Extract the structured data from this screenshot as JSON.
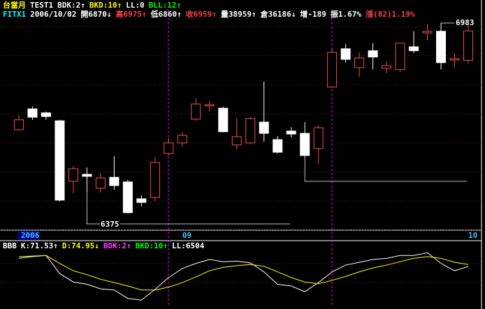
{
  "chart_data": [
    {
      "type": "candlestick",
      "header": [
        [
          {
            "text": "台當月",
            "color": "#ffff00"
          },
          {
            "text": "TEST1",
            "color": "#ffffff"
          },
          {
            "text": "BDK:2↑",
            "color": "#ffffff"
          },
          {
            "text": "BKD:10↑",
            "color": "#ffff00"
          },
          {
            "text": "LL:0",
            "color": "#ffffff"
          },
          {
            "text": "BLL:12↑",
            "color": "#00ff00"
          }
        ],
        [
          {
            "text": "FITX1",
            "color": "#00ffff"
          },
          {
            "text": "2006/10/02",
            "color": "#ffffff"
          },
          {
            "text": "開6870↓",
            "color": "#ffffff"
          },
          {
            "text": "高6975↑",
            "color": "#ff4040"
          },
          {
            "text": "低6860↑",
            "color": "#ffffff"
          },
          {
            "text": "收6959↑",
            "color": "#ff4040"
          },
          {
            "text": "量38959↑",
            "color": "#ffffff"
          },
          {
            "text": "倉36186↓",
            "color": "#ffffff"
          },
          {
            "text": "增-189",
            "color": "#ffffff"
          },
          {
            "text": "振1.67%",
            "color": "#ffffff"
          },
          {
            "text": "漲(82)1.19%",
            "color": "#ff4040"
          }
        ]
      ],
      "categories": [
        "2006",
        null,
        null,
        null,
        null,
        null,
        null,
        null,
        null,
        null,
        null,
        null,
        "09",
        null,
        null,
        null,
        null,
        null,
        null,
        null,
        null,
        null,
        null,
        null,
        null,
        null,
        null,
        null,
        null,
        null,
        null,
        null,
        null,
        "10"
      ],
      "open": [
        6660,
        6723,
        6711,
        6687,
        6504,
        6525,
        6483,
        6516,
        6502,
        6451,
        6455,
        6588,
        6620,
        6692,
        6732,
        6725,
        6614,
        6620,
        6683,
        6630,
        6656,
        6649,
        6603,
        6789,
        6905,
        6848,
        6899,
        6846,
        6842,
        6911,
        6953,
        6958,
        6871,
        6870
      ],
      "high": [
        6704,
        6730,
        6715,
        6690,
        6550,
        6546,
        6529,
        6580,
        6508,
        6462,
        6578,
        6635,
        6652,
        6755,
        6747,
        6730,
        6694,
        6698,
        6806,
        6641,
        6668,
        6683,
        6673,
        6905,
        6920,
        6894,
        6922,
        6867,
        6922,
        6958,
        6979,
        6983,
        6890,
        6975
      ],
      "low": [
        6658,
        6690,
        6690,
        6443,
        6468,
        6472,
        6470,
        6478,
        6407,
        6428,
        6445,
        6582,
        6609,
        6687,
        6715,
        6652,
        6601,
        6616,
        6624,
        6588,
        6637,
        6576,
        6557,
        6785,
        6863,
        6820,
        6842,
        6831,
        6835,
        6892,
        6930,
        6842,
        6848,
        6860
      ],
      "close": [
        6690,
        6698,
        6700,
        6447,
        6542,
        6519,
        6514,
        6491,
        6409,
        6440,
        6561,
        6620,
        6643,
        6738,
        6736,
        6654,
        6639,
        6694,
        6649,
        6592,
        6647,
        6582,
        6666,
        6894,
        6873,
        6877,
        6880,
        6854,
        6922,
        6899,
        6958,
        6863,
        6875,
        6959
      ],
      "up_color": "#f05050",
      "down_color": "#ffffff",
      "ylim": [
        6356,
        7023
      ],
      "grid": true,
      "annotations": [
        {
          "value": 6983,
          "label": "6983"
        },
        {
          "value": 6375,
          "label": "6375"
        }
      ],
      "support_line": 6504
    },
    {
      "type": "line",
      "legend": [
        {
          "text": "BBB",
          "color": "#ffffff"
        },
        {
          "text": "K:71.53↑",
          "color": "#ffffff"
        },
        {
          "text": "D:74.95↓",
          "color": "#ffff00"
        },
        {
          "text": "BDK:2↑",
          "color": "#ff40ff"
        },
        {
          "text": "BKD:10↑",
          "color": "#00ff00"
        },
        {
          "text": "LL:6504",
          "color": "#ffffff"
        }
      ],
      "series": [
        {
          "color": "#ffffff",
          "values": [
            86,
            89,
            91,
            59,
            44,
            40,
            32,
            30,
            15,
            12,
            31,
            52,
            68,
            77,
            84,
            80,
            81,
            78,
            62,
            40,
            37,
            27,
            43,
            62,
            74,
            79,
            84,
            86,
            91,
            91,
            96,
            77,
            64,
            71.53
          ]
        },
        {
          "color": "#ffff00",
          "values": [
            89,
            90,
            91,
            77,
            64,
            57,
            49,
            43,
            37,
            30,
            30,
            35,
            43,
            53,
            64,
            70,
            73,
            75,
            72,
            62,
            52,
            44,
            41,
            47,
            54,
            62,
            69,
            74,
            80,
            86,
            89,
            86,
            79,
            74.95
          ]
        }
      ],
      "ylim": [
        0,
        100
      ],
      "grid": true
    }
  ]
}
